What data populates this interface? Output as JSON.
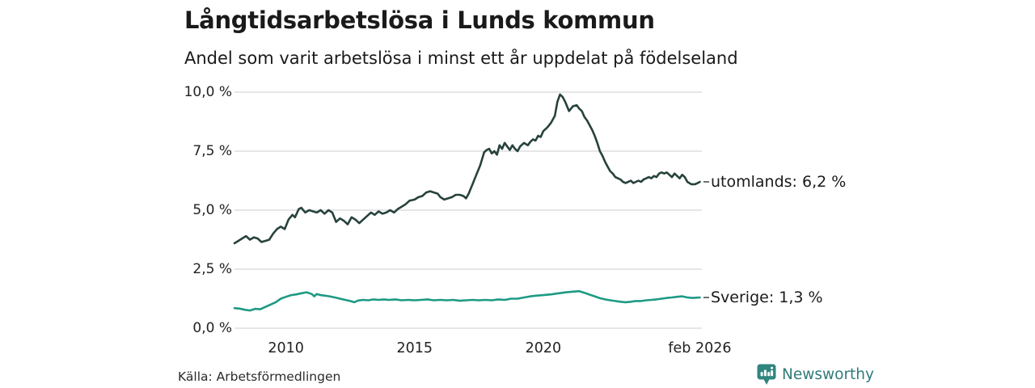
{
  "header": {
    "title": "Långtidsarbetslösa i Lunds kommun",
    "subtitle": "Andel som varit arbetslösa i minst ett år uppdelat på födelseland"
  },
  "footer": {
    "source": "Källa: Arbetsförmedlingen",
    "brand_name": "Newsworthy",
    "brand_icon": "newsworthy-chart-bubble-icon"
  },
  "colors": {
    "background": "#ffffff",
    "text": "#1a1a1a",
    "gridline": "#d8d8d8",
    "connector_dash": "#4d4d4d",
    "brand_teal": "#307b79",
    "series_utomlands": "#27423c",
    "series_sverige": "#1d9a85"
  },
  "chart_data": {
    "type": "line",
    "title": "Långtidsarbetslösa i Lunds kommun",
    "subtitle": "Andel som varit arbetslösa i minst ett år uppdelat på födelseland",
    "xlabel": "",
    "ylabel": "",
    "grid": "horizontal",
    "legend_position": "right-end-labels",
    "xlim": [
      2008.0,
      2026.1
    ],
    "ylim": [
      0,
      10
    ],
    "yticks": [
      {
        "value": 0,
        "label": "0,0 %"
      },
      {
        "value": 2.5,
        "label": "2,5 %"
      },
      {
        "value": 5,
        "label": "5,0 %"
      },
      {
        "value": 7.5,
        "label": "7,5 %"
      },
      {
        "value": 10,
        "label": "10,0 %"
      }
    ],
    "xticks": [
      {
        "value": 2010,
        "label": "2010"
      },
      {
        "value": 2015,
        "label": "2015"
      },
      {
        "value": 2020,
        "label": "2020"
      },
      {
        "value": 2026.083,
        "label": "feb 2026"
      }
    ],
    "series": [
      {
        "name": "utomlands",
        "label": "utomlands: 6,2 %",
        "last_value": "6,2 %",
        "color": "#27423c",
        "points": [
          [
            2008.0,
            3.6
          ],
          [
            2008.15,
            3.7
          ],
          [
            2008.3,
            3.8
          ],
          [
            2008.45,
            3.9
          ],
          [
            2008.6,
            3.75
          ],
          [
            2008.75,
            3.85
          ],
          [
            2008.9,
            3.8
          ],
          [
            2009.05,
            3.65
          ],
          [
            2009.2,
            3.7
          ],
          [
            2009.35,
            3.75
          ],
          [
            2009.5,
            4.0
          ],
          [
            2009.65,
            4.2
          ],
          [
            2009.8,
            4.3
          ],
          [
            2009.95,
            4.2
          ],
          [
            2010.1,
            4.6
          ],
          [
            2010.25,
            4.8
          ],
          [
            2010.35,
            4.7
          ],
          [
            2010.5,
            5.05
          ],
          [
            2010.6,
            5.1
          ],
          [
            2010.75,
            4.9
          ],
          [
            2010.9,
            5.0
          ],
          [
            2011.05,
            4.95
          ],
          [
            2011.2,
            4.9
          ],
          [
            2011.35,
            5.0
          ],
          [
            2011.5,
            4.85
          ],
          [
            2011.65,
            5.0
          ],
          [
            2011.8,
            4.9
          ],
          [
            2011.95,
            4.5
          ],
          [
            2012.1,
            4.65
          ],
          [
            2012.25,
            4.55
          ],
          [
            2012.4,
            4.4
          ],
          [
            2012.55,
            4.7
          ],
          [
            2012.7,
            4.6
          ],
          [
            2012.85,
            4.45
          ],
          [
            2013.0,
            4.6
          ],
          [
            2013.15,
            4.75
          ],
          [
            2013.3,
            4.9
          ],
          [
            2013.45,
            4.8
          ],
          [
            2013.6,
            4.95
          ],
          [
            2013.75,
            4.85
          ],
          [
            2013.9,
            4.9
          ],
          [
            2014.05,
            5.0
          ],
          [
            2014.2,
            4.9
          ],
          [
            2014.35,
            5.05
          ],
          [
            2014.5,
            5.15
          ],
          [
            2014.65,
            5.25
          ],
          [
            2014.8,
            5.4
          ],
          [
            2015.0,
            5.45
          ],
          [
            2015.15,
            5.55
          ],
          [
            2015.3,
            5.6
          ],
          [
            2015.45,
            5.75
          ],
          [
            2015.6,
            5.8
          ],
          [
            2015.75,
            5.75
          ],
          [
            2015.9,
            5.7
          ],
          [
            2016.0,
            5.55
          ],
          [
            2016.15,
            5.45
          ],
          [
            2016.3,
            5.5
          ],
          [
            2016.45,
            5.55
          ],
          [
            2016.6,
            5.65
          ],
          [
            2016.75,
            5.65
          ],
          [
            2016.9,
            5.6
          ],
          [
            2017.0,
            5.5
          ],
          [
            2017.1,
            5.7
          ],
          [
            2017.25,
            6.1
          ],
          [
            2017.4,
            6.5
          ],
          [
            2017.55,
            6.9
          ],
          [
            2017.7,
            7.45
          ],
          [
            2017.8,
            7.55
          ],
          [
            2017.9,
            7.6
          ],
          [
            2018.0,
            7.4
          ],
          [
            2018.1,
            7.5
          ],
          [
            2018.2,
            7.35
          ],
          [
            2018.3,
            7.75
          ],
          [
            2018.4,
            7.6
          ],
          [
            2018.5,
            7.85
          ],
          [
            2018.6,
            7.7
          ],
          [
            2018.7,
            7.55
          ],
          [
            2018.8,
            7.75
          ],
          [
            2018.9,
            7.6
          ],
          [
            2019.0,
            7.5
          ],
          [
            2019.1,
            7.7
          ],
          [
            2019.25,
            7.85
          ],
          [
            2019.4,
            7.75
          ],
          [
            2019.5,
            7.9
          ],
          [
            2019.6,
            8.0
          ],
          [
            2019.7,
            7.95
          ],
          [
            2019.8,
            8.15
          ],
          [
            2019.9,
            8.1
          ],
          [
            2020.0,
            8.35
          ],
          [
            2020.15,
            8.5
          ],
          [
            2020.3,
            8.7
          ],
          [
            2020.45,
            9.0
          ],
          [
            2020.55,
            9.6
          ],
          [
            2020.65,
            9.9
          ],
          [
            2020.75,
            9.8
          ],
          [
            2020.85,
            9.6
          ],
          [
            2021.0,
            9.2
          ],
          [
            2021.15,
            9.4
          ],
          [
            2021.3,
            9.45
          ],
          [
            2021.4,
            9.3
          ],
          [
            2021.5,
            9.2
          ],
          [
            2021.6,
            8.95
          ],
          [
            2021.7,
            8.8
          ],
          [
            2021.8,
            8.6
          ],
          [
            2021.9,
            8.4
          ],
          [
            2022.0,
            8.15
          ],
          [
            2022.1,
            7.85
          ],
          [
            2022.2,
            7.5
          ],
          [
            2022.3,
            7.3
          ],
          [
            2022.4,
            7.05
          ],
          [
            2022.5,
            6.85
          ],
          [
            2022.6,
            6.65
          ],
          [
            2022.7,
            6.55
          ],
          [
            2022.8,
            6.4
          ],
          [
            2022.9,
            6.35
          ],
          [
            2023.0,
            6.3
          ],
          [
            2023.1,
            6.2
          ],
          [
            2023.2,
            6.15
          ],
          [
            2023.3,
            6.2
          ],
          [
            2023.4,
            6.25
          ],
          [
            2023.5,
            6.15
          ],
          [
            2023.6,
            6.2
          ],
          [
            2023.7,
            6.25
          ],
          [
            2023.8,
            6.2
          ],
          [
            2023.9,
            6.3
          ],
          [
            2024.0,
            6.35
          ],
          [
            2024.1,
            6.4
          ],
          [
            2024.2,
            6.35
          ],
          [
            2024.3,
            6.45
          ],
          [
            2024.4,
            6.4
          ],
          [
            2024.5,
            6.55
          ],
          [
            2024.6,
            6.6
          ],
          [
            2024.7,
            6.55
          ],
          [
            2024.8,
            6.6
          ],
          [
            2024.9,
            6.5
          ],
          [
            2025.0,
            6.4
          ],
          [
            2025.1,
            6.55
          ],
          [
            2025.2,
            6.45
          ],
          [
            2025.3,
            6.35
          ],
          [
            2025.4,
            6.5
          ],
          [
            2025.5,
            6.4
          ],
          [
            2025.6,
            6.2
          ],
          [
            2025.75,
            6.1
          ],
          [
            2025.9,
            6.1
          ],
          [
            2026.0,
            6.15
          ],
          [
            2026.083,
            6.2
          ]
        ]
      },
      {
        "name": "Sverige",
        "label": "Sverige: 1,3 %",
        "last_value": "1,3 %",
        "color": "#1d9a85",
        "points": [
          [
            2008.0,
            0.85
          ],
          [
            2008.2,
            0.83
          ],
          [
            2008.4,
            0.78
          ],
          [
            2008.6,
            0.75
          ],
          [
            2008.8,
            0.82
          ],
          [
            2009.0,
            0.8
          ],
          [
            2009.2,
            0.9
          ],
          [
            2009.4,
            1.0
          ],
          [
            2009.6,
            1.1
          ],
          [
            2009.8,
            1.25
          ],
          [
            2010.0,
            1.33
          ],
          [
            2010.2,
            1.4
          ],
          [
            2010.4,
            1.43
          ],
          [
            2010.6,
            1.48
          ],
          [
            2010.8,
            1.52
          ],
          [
            2011.0,
            1.45
          ],
          [
            2011.1,
            1.35
          ],
          [
            2011.2,
            1.45
          ],
          [
            2011.35,
            1.4
          ],
          [
            2011.5,
            1.38
          ],
          [
            2011.7,
            1.35
          ],
          [
            2011.9,
            1.3
          ],
          [
            2012.1,
            1.25
          ],
          [
            2012.3,
            1.2
          ],
          [
            2012.5,
            1.15
          ],
          [
            2012.65,
            1.1
          ],
          [
            2012.8,
            1.17
          ],
          [
            2013.0,
            1.2
          ],
          [
            2013.2,
            1.18
          ],
          [
            2013.4,
            1.22
          ],
          [
            2013.6,
            1.2
          ],
          [
            2013.8,
            1.22
          ],
          [
            2014.0,
            1.2
          ],
          [
            2014.25,
            1.22
          ],
          [
            2014.5,
            1.18
          ],
          [
            2014.75,
            1.2
          ],
          [
            2015.0,
            1.18
          ],
          [
            2015.25,
            1.2
          ],
          [
            2015.5,
            1.22
          ],
          [
            2015.75,
            1.18
          ],
          [
            2016.0,
            1.2
          ],
          [
            2016.25,
            1.18
          ],
          [
            2016.5,
            1.2
          ],
          [
            2016.75,
            1.16
          ],
          [
            2017.0,
            1.18
          ],
          [
            2017.25,
            1.2
          ],
          [
            2017.5,
            1.18
          ],
          [
            2017.75,
            1.2
          ],
          [
            2018.0,
            1.18
          ],
          [
            2018.25,
            1.22
          ],
          [
            2018.5,
            1.2
          ],
          [
            2018.75,
            1.25
          ],
          [
            2019.0,
            1.25
          ],
          [
            2019.25,
            1.3
          ],
          [
            2019.5,
            1.35
          ],
          [
            2019.75,
            1.38
          ],
          [
            2020.0,
            1.4
          ],
          [
            2020.3,
            1.43
          ],
          [
            2020.6,
            1.48
          ],
          [
            2020.9,
            1.52
          ],
          [
            2021.2,
            1.55
          ],
          [
            2021.4,
            1.57
          ],
          [
            2021.6,
            1.5
          ],
          [
            2021.8,
            1.42
          ],
          [
            2022.0,
            1.35
          ],
          [
            2022.2,
            1.27
          ],
          [
            2022.4,
            1.22
          ],
          [
            2022.6,
            1.18
          ],
          [
            2022.8,
            1.15
          ],
          [
            2023.0,
            1.12
          ],
          [
            2023.2,
            1.1
          ],
          [
            2023.4,
            1.12
          ],
          [
            2023.6,
            1.15
          ],
          [
            2023.8,
            1.15
          ],
          [
            2024.0,
            1.18
          ],
          [
            2024.2,
            1.2
          ],
          [
            2024.4,
            1.22
          ],
          [
            2024.6,
            1.25
          ],
          [
            2024.8,
            1.28
          ],
          [
            2025.0,
            1.3
          ],
          [
            2025.2,
            1.33
          ],
          [
            2025.4,
            1.35
          ],
          [
            2025.6,
            1.3
          ],
          [
            2025.8,
            1.28
          ],
          [
            2026.083,
            1.3
          ]
        ]
      }
    ]
  }
}
